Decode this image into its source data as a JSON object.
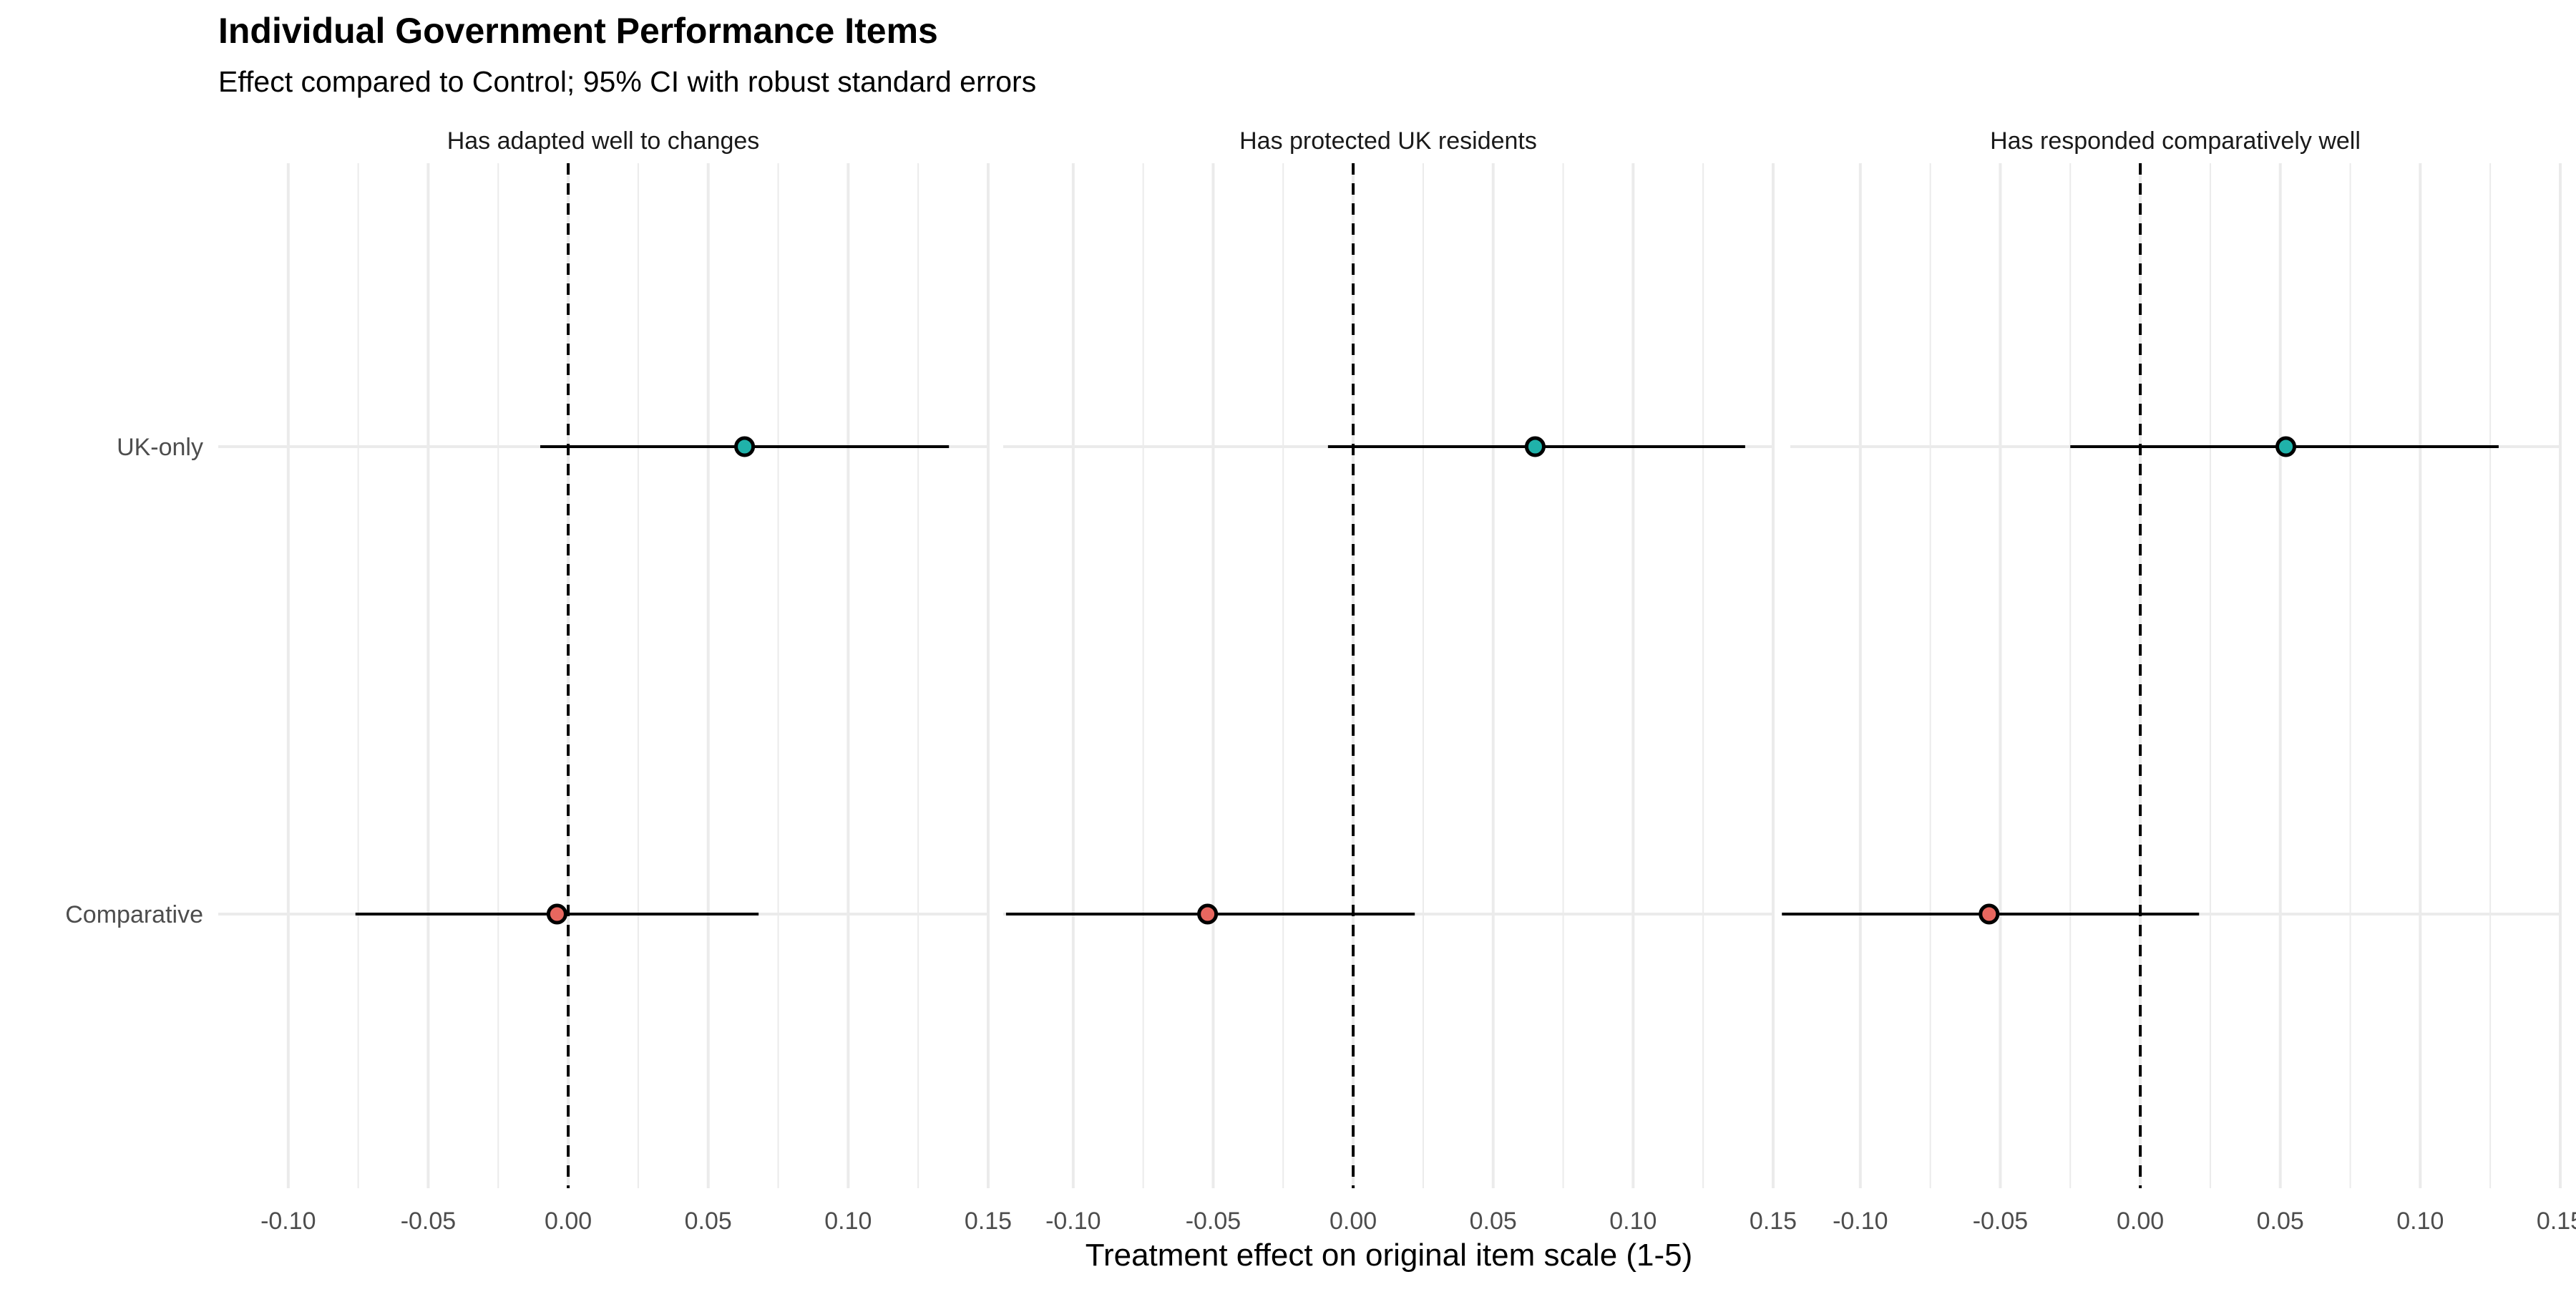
{
  "chart_data": {
    "type": "scatter",
    "subtype": "coefficient-plot (dot with 95% CI whiskers), faceted",
    "title": "Individual Government Performance Items",
    "subtitle": "Effect compared to Control; 95% CI with robust standard errors",
    "xlabel": "Treatment effect on original item scale (1-5)",
    "ylabel": "",
    "xlim": [
      -0.125,
      0.15
    ],
    "x_ticks": [
      -0.1,
      -0.05,
      0.0,
      0.05,
      0.1,
      0.15
    ],
    "x_tick_labels": [
      "-0.10",
      "-0.05",
      "0.00",
      "0.05",
      "0.10",
      "0.15"
    ],
    "categories": [
      "UK-only",
      "Comparative"
    ],
    "reference_line": 0,
    "grid": true,
    "legend": "none",
    "colors": {
      "UK-only": "#20b2aa",
      "Comparative": "#e8675f",
      "line": "#000000",
      "grid": "#ebebeb"
    },
    "facets": [
      {
        "label": "Has adapted well to changes",
        "points": [
          {
            "category": "UK-only",
            "estimate": 0.063,
            "ci_low": -0.01,
            "ci_high": 0.136
          },
          {
            "category": "Comparative",
            "estimate": -0.004,
            "ci_low": -0.076,
            "ci_high": 0.068
          }
        ]
      },
      {
        "label": "Has protected UK residents",
        "points": [
          {
            "category": "UK-only",
            "estimate": 0.065,
            "ci_low": -0.009,
            "ci_high": 0.14
          },
          {
            "category": "Comparative",
            "estimate": -0.052,
            "ci_low": -0.124,
            "ci_high": 0.022
          }
        ]
      },
      {
        "label": "Has responded comparatively well",
        "points": [
          {
            "category": "UK-only",
            "estimate": 0.052,
            "ci_low": -0.025,
            "ci_high": 0.128
          },
          {
            "category": "Comparative",
            "estimate": -0.054,
            "ci_low": -0.128,
            "ci_high": 0.021
          }
        ]
      }
    ]
  }
}
